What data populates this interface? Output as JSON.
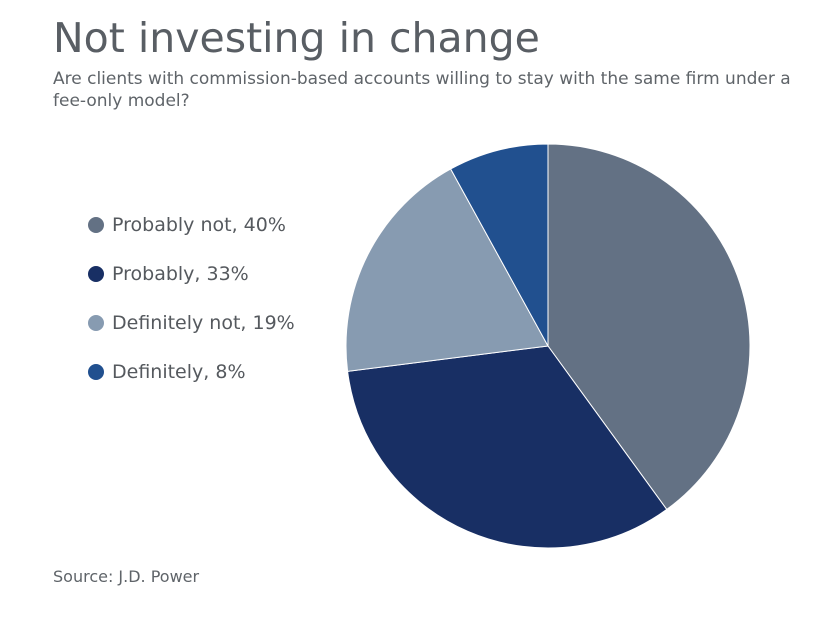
{
  "title": "Not investing in change",
  "subtitle": "Are clients with commission-based accounts willing to stay with the same firm under a fee-only model?",
  "source": "Source: J.D. Power",
  "chart_data": {
    "type": "pie",
    "title": "Not investing in change",
    "subtitle": "Are clients with commission-based accounts willing to stay with the same firm under a fee-only model?",
    "legend_position": "left",
    "start_angle": "12 o'clock",
    "direction": "clockwise",
    "slices": [
      {
        "label": "Probably not",
        "value": 40,
        "legend_text": "Probably not, 40%",
        "color": "#637184"
      },
      {
        "label": "Probably",
        "value": 33,
        "legend_text": "Probably, 33%",
        "color": "#182f64"
      },
      {
        "label": "Definitely not",
        "value": 19,
        "legend_text": "Definitely not, 19%",
        "color": "#879bb1"
      },
      {
        "label": "Definitely",
        "value": 8,
        "legend_text": "Definitely, 8%",
        "color": "#21508f"
      }
    ]
  }
}
